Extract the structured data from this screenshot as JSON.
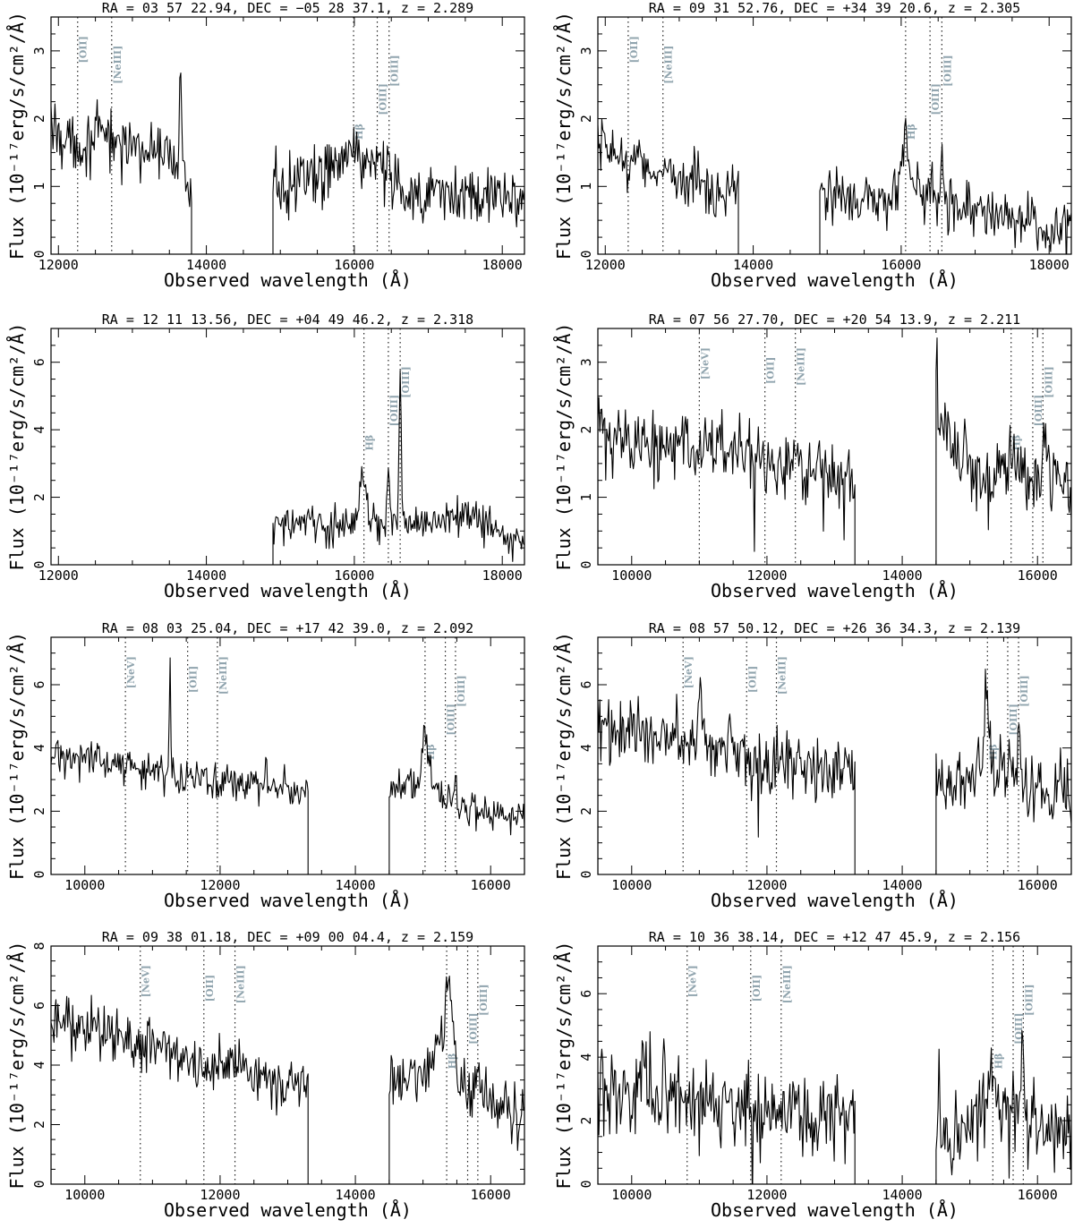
{
  "x_axis_label": "Observed wavelength (Å)",
  "y_axis_label": "Flux (10⁻¹⁷erg/s/cm²/Å)",
  "colors": {
    "spectrum": "#000000",
    "line_labels": "#90a4ae",
    "frame": "#000000"
  },
  "chart_data": [
    {
      "type": "line",
      "title": "RA = 03 57 22.94, DEC = −05 28 37.1, z = 2.289",
      "xlim": [
        11900,
        18300
      ],
      "ylim": [
        0,
        3.5
      ],
      "xticks": [
        12000,
        14000,
        16000,
        18000
      ],
      "yticks": [
        0,
        1,
        2,
        3
      ],
      "lines": [
        {
          "label": "[OII]",
          "wavelength": 12260
        },
        {
          "label": "[NeIII]",
          "wavelength": 12720
        },
        {
          "label": "Hβ",
          "wavelength": 15990
        },
        {
          "label": "[OIII]",
          "wavelength": 16310
        },
        {
          "label": "[OIII]",
          "wavelength": 16470
        }
      ],
      "segments": [
        {
          "x": [
            11900,
            12100,
            12300,
            12500,
            12700,
            12900,
            13100,
            13300,
            13500,
            13700,
            13800
          ],
          "y": [
            1.9,
            1.7,
            1.6,
            1.7,
            1.75,
            1.65,
            1.55,
            1.5,
            1.4,
            1.2,
            0.8
          ]
        },
        {
          "x": [
            14900,
            15100,
            15300,
            15500,
            15700,
            15900,
            16000,
            16200,
            16400,
            16600,
            16800,
            17000,
            17200,
            17400,
            17600,
            17800,
            18000,
            18300
          ],
          "y": [
            1.05,
            1.1,
            1.05,
            1.1,
            1.3,
            1.45,
            1.5,
            1.3,
            1.1,
            0.95,
            0.9,
            0.85,
            0.85,
            0.8,
            0.85,
            0.85,
            0.85,
            0.9
          ]
        }
      ],
      "features": [
        {
          "x": 13650,
          "amp": 1.7,
          "w": 15
        },
        {
          "x": 15990,
          "amp": 0.15,
          "w": 60
        },
        {
          "x": 16310,
          "amp": 0.2,
          "w": 25
        },
        {
          "x": 16470,
          "amp": 0.4,
          "w": 20
        }
      ],
      "noise": 0.22
    },
    {
      "type": "line",
      "title": "RA = 09 31 52.76, DEC = +34 39 20.6, z = 2.305",
      "xlim": [
        11900,
        18300
      ],
      "ylim": [
        0,
        3.5
      ],
      "xticks": [
        12000,
        14000,
        16000,
        18000
      ],
      "yticks": [
        0,
        1,
        2,
        3
      ],
      "lines": [
        {
          "label": "[OII]",
          "wavelength": 12310
        },
        {
          "label": "[NeIII]",
          "wavelength": 12780
        },
        {
          "label": "Hβ",
          "wavelength": 16060
        },
        {
          "label": "[OIII]",
          "wavelength": 16390
        },
        {
          "label": "[OIII]",
          "wavelength": 16550
        }
      ],
      "segments": [
        {
          "x": [
            11900,
            12100,
            12300,
            12500,
            12700,
            12900,
            13100,
            13300,
            13500,
            13700,
            13800
          ],
          "y": [
            1.55,
            1.5,
            1.4,
            1.3,
            1.25,
            1.15,
            1.1,
            1.05,
            1.0,
            1.0,
            1.1
          ]
        },
        {
          "x": [
            14900,
            15100,
            15300,
            15500,
            15700,
            15900,
            16000,
            16200,
            16400,
            16600,
            16800,
            17000,
            17200,
            17400,
            17600,
            17800,
            18000,
            18300
          ],
          "y": [
            0.9,
            0.85,
            0.85,
            0.8,
            0.8,
            0.85,
            1.1,
            0.95,
            0.8,
            0.75,
            0.7,
            0.65,
            0.6,
            0.55,
            0.5,
            0.45,
            0.4,
            0.35
          ]
        }
      ],
      "features": [
        {
          "x": 16060,
          "amp": 0.8,
          "w": 30
        },
        {
          "x": 16390,
          "amp": 0.3,
          "w": 20
        },
        {
          "x": 16550,
          "amp": 0.85,
          "w": 20
        }
      ],
      "noise": 0.2
    },
    {
      "type": "line",
      "title": "RA = 12 11 13.56, DEC = +04 49 46.2, z = 2.318",
      "xlim": [
        11900,
        18300
      ],
      "ylim": [
        0,
        7
      ],
      "xticks": [
        12000,
        14000,
        16000,
        18000
      ],
      "yticks": [
        0,
        2,
        4,
        6
      ],
      "lines": [
        {
          "label": "Hβ",
          "wavelength": 16130
        },
        {
          "label": "[OIII]",
          "wavelength": 16460
        },
        {
          "label": "[OIII]",
          "wavelength": 16620
        }
      ],
      "segments": [
        {
          "x": [
            14900,
            15100,
            15300,
            15500,
            15700,
            15900,
            16000,
            16200,
            16400,
            16600,
            16800,
            17000,
            17200,
            17400,
            17600,
            17800,
            18000,
            18300
          ],
          "y": [
            1.15,
            1.2,
            1.2,
            1.15,
            1.1,
            1.2,
            1.6,
            1.3,
            1.2,
            1.3,
            1.2,
            1.25,
            1.35,
            1.5,
            1.45,
            1.2,
            0.8,
            0.6
          ]
        }
      ],
      "features": [
        {
          "x": 16110,
          "amp": 1.3,
          "w": 35
        },
        {
          "x": 16460,
          "amp": 1.6,
          "w": 15
        },
        {
          "x": 16620,
          "amp": 4.2,
          "w": 15
        }
      ],
      "noise": 0.28
    },
    {
      "type": "line",
      "title": "RA = 07 56 27.70, DEC = +20 54 13.9, z = 2.211",
      "xlim": [
        9500,
        16500
      ],
      "ylim": [
        0,
        3.5
      ],
      "xticks": [
        10000,
        12000,
        14000,
        16000
      ],
      "yticks": [
        0,
        1,
        2,
        3
      ],
      "lines": [
        {
          "label": "[NeV]",
          "wavelength": 11000
        },
        {
          "label": "[OII]",
          "wavelength": 11970
        },
        {
          "label": "[NeIII]",
          "wavelength": 12420
        },
        {
          "label": "Hβ",
          "wavelength": 15610
        },
        {
          "label": "[OIII]",
          "wavelength": 15930
        },
        {
          "label": "[OIII]",
          "wavelength": 16080
        }
      ],
      "segments": [
        {
          "x": [
            9500,
            9800,
            10100,
            10400,
            10700,
            11000,
            11300,
            11600,
            11900,
            12200,
            12500,
            12800,
            13100,
            13300
          ],
          "y": [
            1.95,
            1.85,
            1.8,
            1.75,
            1.7,
            1.65,
            1.9,
            1.6,
            1.5,
            1.45,
            1.45,
            1.35,
            1.35,
            1.3
          ]
        },
        {
          "x": [
            14500,
            14700,
            14900,
            15100,
            15300,
            15500,
            15700,
            15900,
            16100,
            16300,
            16500
          ],
          "y": [
            1.9,
            1.75,
            1.6,
            1.35,
            1.2,
            1.3,
            1.4,
            1.3,
            1.4,
            1.3,
            1.15
          ]
        }
      ],
      "features": [
        {
          "x": 14510,
          "amp": 1.5,
          "w": 8
        },
        {
          "x": 15600,
          "amp": 0.7,
          "w": 25
        },
        {
          "x": 16080,
          "amp": 0.4,
          "w": 25
        }
      ],
      "noise": 0.26
    },
    {
      "type": "line",
      "title": "RA = 08 03 25.04, DEC = +17 42 39.0, z = 2.092",
      "xlim": [
        9500,
        16500
      ],
      "ylim": [
        0,
        7.5
      ],
      "xticks": [
        10000,
        12000,
        14000,
        16000
      ],
      "yticks": [
        0,
        2,
        4,
        6
      ],
      "lines": [
        {
          "label": "[NeV]",
          "wavelength": 10600
        },
        {
          "label": "[OII]",
          "wavelength": 11520
        },
        {
          "label": "[NeIII]",
          "wavelength": 11960
        },
        {
          "label": "Hβ",
          "wavelength": 15030
        },
        {
          "label": "[OIII]",
          "wavelength": 15330
        },
        {
          "label": "[OIII]",
          "wavelength": 15480
        }
      ],
      "segments": [
        {
          "x": [
            9500,
            9800,
            10100,
            10400,
            10700,
            11000,
            11300,
            11600,
            11900,
            12200,
            12500,
            12800,
            13100,
            13300
          ],
          "y": [
            3.7,
            3.75,
            3.7,
            3.6,
            3.4,
            3.3,
            3.2,
            3.1,
            3.0,
            2.95,
            2.85,
            2.8,
            2.75,
            2.7
          ]
        },
        {
          "x": [
            14500,
            14700,
            14900,
            15000,
            15200,
            15400,
            15600,
            15800,
            16000,
            16200,
            16500
          ],
          "y": [
            2.6,
            2.7,
            2.9,
            3.7,
            2.6,
            2.4,
            2.2,
            2.0,
            1.95,
            1.95,
            1.9
          ]
        }
      ],
      "features": [
        {
          "x": 11260,
          "amp": 3.6,
          "w": 10
        },
        {
          "x": 12680,
          "amp": 0.8,
          "w": 12
        },
        {
          "x": 15030,
          "amp": 0.9,
          "w": 30
        },
        {
          "x": 15480,
          "amp": 0.7,
          "w": 25
        }
      ],
      "noise": 0.28
    },
    {
      "type": "line",
      "title": "RA = 08 57 50.12, DEC = +26 36 34.3, z = 2.139",
      "xlim": [
        9500,
        16500
      ],
      "ylim": [
        0,
        7.5
      ],
      "xticks": [
        10000,
        12000,
        14000,
        16000
      ],
      "yticks": [
        0,
        2,
        4,
        6
      ],
      "lines": [
        {
          "label": "[NeV]",
          "wavelength": 10760
        },
        {
          "label": "[OII]",
          "wavelength": 11700
        },
        {
          "label": "[NeIII]",
          "wavelength": 12140
        },
        {
          "label": "Hβ",
          "wavelength": 15260
        },
        {
          "label": "[OIII]",
          "wavelength": 15560
        },
        {
          "label": "[OIII]",
          "wavelength": 15720
        }
      ],
      "segments": [
        {
          "x": [
            9500,
            9800,
            10100,
            10400,
            10700,
            11000,
            11300,
            11600,
            11900,
            12200,
            12500,
            12800,
            13100,
            13300
          ],
          "y": [
            4.5,
            4.6,
            4.5,
            4.4,
            4.3,
            4.2,
            4.0,
            3.8,
            3.7,
            3.6,
            3.5,
            3.4,
            3.3,
            3.2
          ]
        },
        {
          "x": [
            14500,
            14700,
            14900,
            15100,
            15300,
            15500,
            15700,
            15900,
            16100,
            16300,
            16500
          ],
          "y": [
            3.1,
            2.9,
            3.0,
            3.2,
            3.6,
            3.0,
            3.2,
            2.8,
            2.6,
            2.6,
            2.5
          ]
        }
      ],
      "features": [
        {
          "x": 11010,
          "amp": 2.0,
          "w": 20
        },
        {
          "x": 15250,
          "amp": 2.6,
          "w": 25
        },
        {
          "x": 15720,
          "amp": 1.5,
          "w": 25
        }
      ],
      "noise": 0.55
    },
    {
      "type": "line",
      "title": "RA = 09 38 01.18, DEC = +09 00 04.4, z = 2.159",
      "xlim": [
        9500,
        16500
      ],
      "ylim": [
        0,
        8
      ],
      "xticks": [
        10000,
        12000,
        14000,
        16000
      ],
      "yticks": [
        0,
        2,
        4,
        6,
        8
      ],
      "lines": [
        {
          "label": "[NeV]",
          "wavelength": 10820
        },
        {
          "label": "[OII]",
          "wavelength": 11760
        },
        {
          "label": "[NeIII]",
          "wavelength": 12220
        },
        {
          "label": "Hβ",
          "wavelength": 15350
        },
        {
          "label": "[OIII]",
          "wavelength": 15660
        },
        {
          "label": "[OIII]",
          "wavelength": 15810
        }
      ],
      "segments": [
        {
          "x": [
            9500,
            9800,
            10100,
            10400,
            10700,
            11000,
            11300,
            11600,
            11900,
            12200,
            12500,
            12800,
            13100,
            13300
          ],
          "y": [
            5.3,
            5.4,
            5.3,
            5.0,
            4.8,
            4.7,
            4.5,
            4.2,
            4.0,
            3.9,
            3.7,
            3.5,
            3.3,
            3.2
          ]
        },
        {
          "x": [
            14500,
            14700,
            14900,
            15100,
            15250,
            15400,
            15500,
            15700,
            15900,
            16100,
            16300,
            16500
          ],
          "y": [
            3.4,
            3.6,
            3.5,
            4.0,
            4.8,
            5.6,
            3.6,
            3.2,
            3.0,
            2.6,
            2.5,
            2.4
          ]
        }
      ],
      "features": [
        {
          "x": 15380,
          "amp": 1.0,
          "w": 30
        },
        {
          "x": 15810,
          "amp": 1.0,
          "w": 25
        }
      ],
      "noise": 0.45
    },
    {
      "type": "line",
      "title": "RA = 10 36 38.14, DEC = +12 47 45.9, z = 2.156",
      "xlim": [
        9500,
        16500
      ],
      "ylim": [
        0,
        7.5
      ],
      "xticks": [
        10000,
        12000,
        14000,
        16000
      ],
      "yticks": [
        0,
        2,
        4,
        6
      ],
      "lines": [
        {
          "label": "[NeV]",
          "wavelength": 10820
        },
        {
          "label": "[OII]",
          "wavelength": 11760
        },
        {
          "label": "[NeIII]",
          "wavelength": 12210
        },
        {
          "label": "Hβ",
          "wavelength": 15340
        },
        {
          "label": "[OIII]",
          "wavelength": 15640
        },
        {
          "label": "[OIII]",
          "wavelength": 15790
        }
      ],
      "segments": [
        {
          "x": [
            9500,
            9800,
            10100,
            10400,
            10700,
            11000,
            11300,
            11600,
            11900,
            12200,
            12500,
            12800,
            13100,
            13300
          ],
          "y": [
            3.0,
            3.0,
            2.9,
            2.8,
            2.7,
            2.6,
            2.6,
            2.5,
            2.4,
            2.3,
            2.2,
            2.1,
            2.0,
            2.0
          ]
        },
        {
          "x": [
            14500,
            14700,
            14900,
            15100,
            15300,
            15500,
            15700,
            15900,
            16100,
            16300,
            16500
          ],
          "y": [
            1.8,
            1.7,
            1.8,
            2.0,
            2.6,
            2.2,
            2.4,
            1.9,
            1.8,
            1.6,
            1.5
          ]
        }
      ],
      "features": [
        {
          "x": 10160,
          "amp": 3.0,
          "w": 10
        },
        {
          "x": 14540,
          "amp": 2.5,
          "w": 8
        },
        {
          "x": 15340,
          "amp": 1.2,
          "w": 25
        },
        {
          "x": 15790,
          "amp": 2.0,
          "w": 25
        }
      ],
      "noise": 0.7
    }
  ]
}
